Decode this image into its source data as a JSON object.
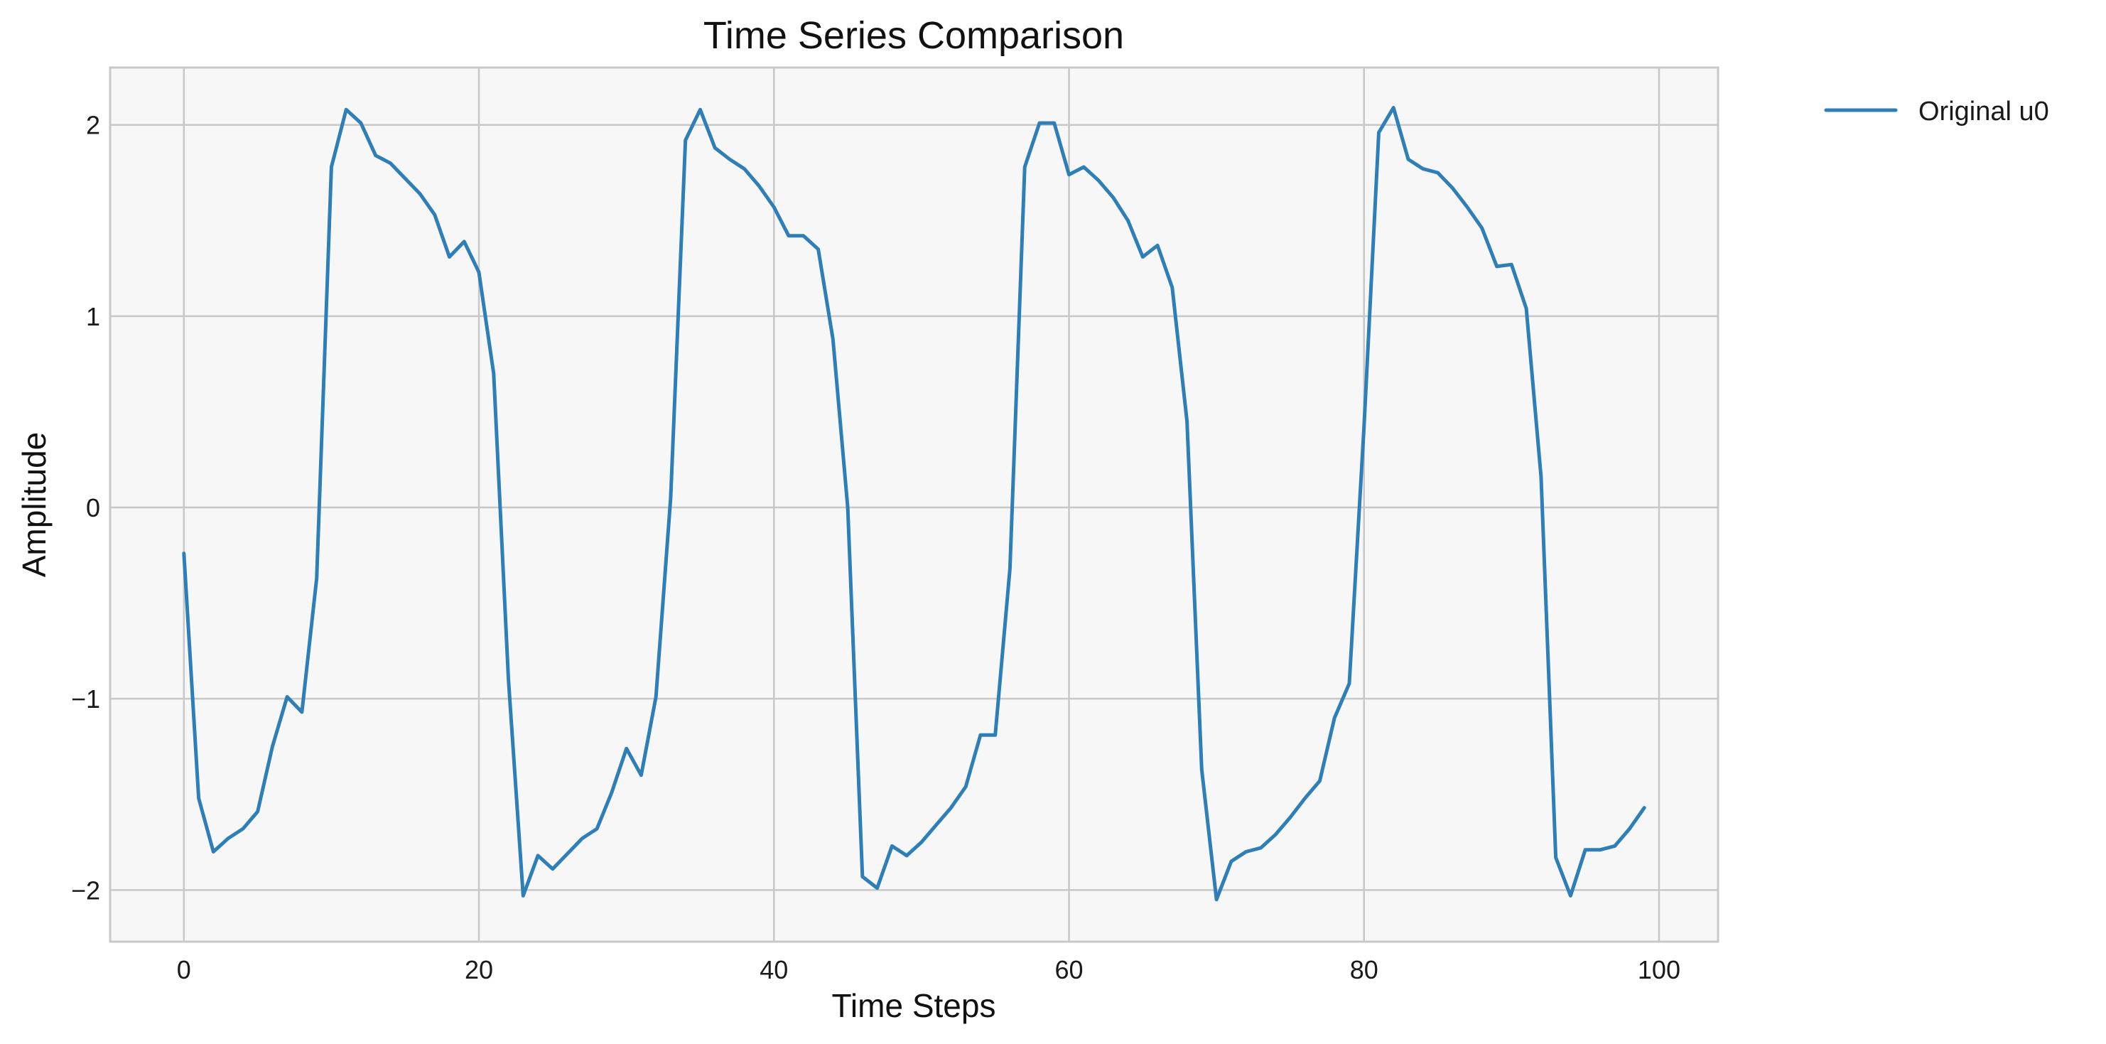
{
  "chart_data": {
    "type": "line",
    "title": "Time Series Comparison",
    "xlabel": "Time Steps",
    "ylabel": "Amplitude",
    "xlim": [
      -5,
      104
    ],
    "ylim": [
      -2.27,
      2.3
    ],
    "xticks": [
      0,
      20,
      40,
      60,
      80,
      100
    ],
    "xtick_labels": [
      "0",
      "20",
      "40",
      "60",
      "80",
      "100"
    ],
    "yticks": [
      -2,
      -1,
      0,
      1,
      2
    ],
    "ytick_labels": [
      "−2",
      "−1",
      "0",
      "1",
      "2"
    ],
    "grid": true,
    "legend_position": "outside-top-right",
    "colors": {
      "line": "#2e7eb8",
      "plot_bg": "#f7f7f7",
      "grid": "#c8c8c8",
      "frame": "#c8c8c8"
    },
    "series": [
      {
        "name": "Original u0",
        "x": [
          0,
          1,
          2,
          3,
          4,
          5,
          6,
          7,
          8,
          9,
          10,
          11,
          12,
          13,
          14,
          15,
          16,
          17,
          18,
          19,
          20,
          21,
          22,
          23,
          24,
          25,
          26,
          27,
          28,
          29,
          30,
          31,
          32,
          33,
          34,
          35,
          36,
          37,
          38,
          39,
          40,
          41,
          42,
          43,
          44,
          45,
          46,
          47,
          48,
          49,
          50,
          51,
          52,
          53,
          54,
          55,
          56,
          57,
          58,
          59,
          60,
          61,
          62,
          63,
          64,
          65,
          66,
          67,
          68,
          69,
          70,
          71,
          72,
          73,
          74,
          75,
          76,
          77,
          78,
          79,
          80,
          81,
          82,
          83,
          84,
          85,
          86,
          87,
          88,
          89,
          90,
          91,
          92,
          93,
          94,
          95,
          96,
          97,
          98,
          99
        ],
        "y": [
          -0.24,
          -1.52,
          -1.8,
          -1.73,
          -1.68,
          -1.59,
          -1.25,
          -0.99,
          -1.07,
          -0.37,
          1.78,
          2.08,
          2.01,
          1.84,
          1.8,
          1.72,
          1.64,
          1.53,
          1.31,
          1.39,
          1.23,
          0.7,
          -0.9,
          -2.03,
          -1.82,
          -1.89,
          -1.81,
          -1.73,
          -1.68,
          -1.49,
          -1.26,
          -1.4,
          -0.99,
          0.05,
          1.92,
          2.08,
          1.88,
          1.82,
          1.77,
          1.68,
          1.57,
          1.42,
          1.42,
          1.35,
          0.88,
          0.0,
          -1.93,
          -1.99,
          -1.77,
          -1.82,
          -1.75,
          -1.66,
          -1.57,
          -1.46,
          -1.19,
          -1.19,
          -0.32,
          1.78,
          2.01,
          2.01,
          1.74,
          1.78,
          1.71,
          1.62,
          1.5,
          1.31,
          1.37,
          1.15,
          0.45,
          -1.37,
          -2.05,
          -1.85,
          -1.8,
          -1.78,
          -1.71,
          -1.62,
          -1.52,
          -1.43,
          -1.1,
          -0.92,
          0.42,
          1.96,
          2.09,
          1.82,
          1.77,
          1.75,
          1.67,
          1.57,
          1.46,
          1.26,
          1.27,
          1.04,
          0.16,
          -1.83,
          -2.03,
          -1.79,
          -1.79,
          -1.77,
          -1.68,
          -1.57
        ]
      }
    ]
  }
}
